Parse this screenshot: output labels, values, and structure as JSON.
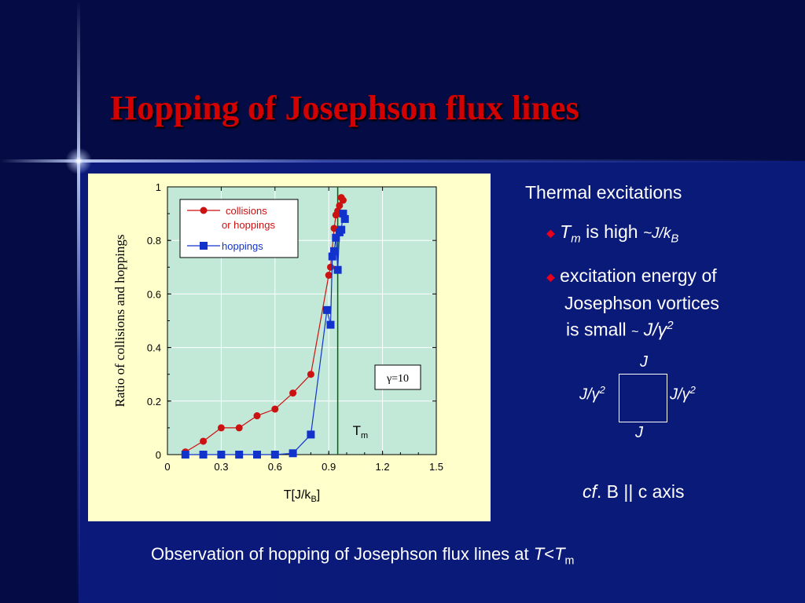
{
  "slide": {
    "title": "Hopping of Josephson flux lines",
    "footer": {
      "prefix": "Observation of hopping of Josephson flux lines at ",
      "t": "T",
      "lt": "<",
      "tm": "T",
      "tm_sub": "m"
    }
  },
  "notes": {
    "heading": "Thermal excitations",
    "b1_t": "T",
    "b1_sub": "m",
    "b1_text": "is high",
    "b1_val": "~J/k",
    "b1_val_sub": "B",
    "b2_line1": "excitation energy of",
    "b2_line2": "Josephson vortices",
    "b2_line3": "is small",
    "b2_tilde": "~",
    "b2_val": "J/γ",
    "b2_val_sup": "2",
    "diagram": {
      "top": "J",
      "bottom": "J",
      "left": "J/γ",
      "left_sup": "2",
      "right": "J/γ",
      "right_sup": "2"
    },
    "cf_prefix": "cf",
    "cf_text": ". B || c axis"
  },
  "chart_data": {
    "type": "line",
    "ylabel": "Ratio of  collisions and hoppings",
    "xlabel": "T[J/k",
    "xlabel_sub": "B",
    "xlabel_end": "]",
    "xlim": [
      0,
      1.5
    ],
    "ylim": [
      0,
      1
    ],
    "x_ticks": [
      "0",
      "0.3",
      "0.6",
      "0.9",
      "1.2",
      "1.5"
    ],
    "y_ticks": [
      "0",
      "0.2",
      "0.4",
      "0.6",
      "0.8",
      "1"
    ],
    "tm_line_x": 0.95,
    "tm_label": "T",
    "tm_label_sub": "m",
    "annotation": "γ=10",
    "legend_position": "top-left",
    "series": [
      {
        "name_line1": "collisions",
        "name_line2": "or hoppings",
        "color": "#cc1111",
        "marker": "circle",
        "x": [
          0.1,
          0.2,
          0.3,
          0.4,
          0.5,
          0.6,
          0.7,
          0.8,
          0.9,
          0.91,
          0.93,
          0.94,
          0.95,
          0.96,
          0.97,
          0.98
        ],
        "y": [
          0.01,
          0.05,
          0.1,
          0.1,
          0.145,
          0.17,
          0.23,
          0.3,
          0.67,
          0.7,
          0.845,
          0.895,
          0.91,
          0.93,
          0.96,
          0.95
        ]
      },
      {
        "name_line1": "hoppings",
        "color": "#1133cc",
        "marker": "square",
        "x": [
          0.1,
          0.2,
          0.3,
          0.4,
          0.5,
          0.6,
          0.7,
          0.8,
          0.89,
          0.91,
          0.92,
          0.93,
          0.94,
          0.95,
          0.96,
          0.97,
          0.98,
          0.99
        ],
        "y": [
          0,
          0,
          0,
          0,
          0,
          0,
          0.005,
          0.075,
          0.54,
          0.485,
          0.74,
          0.76,
          0.81,
          0.69,
          0.83,
          0.84,
          0.9,
          0.88
        ]
      }
    ]
  }
}
